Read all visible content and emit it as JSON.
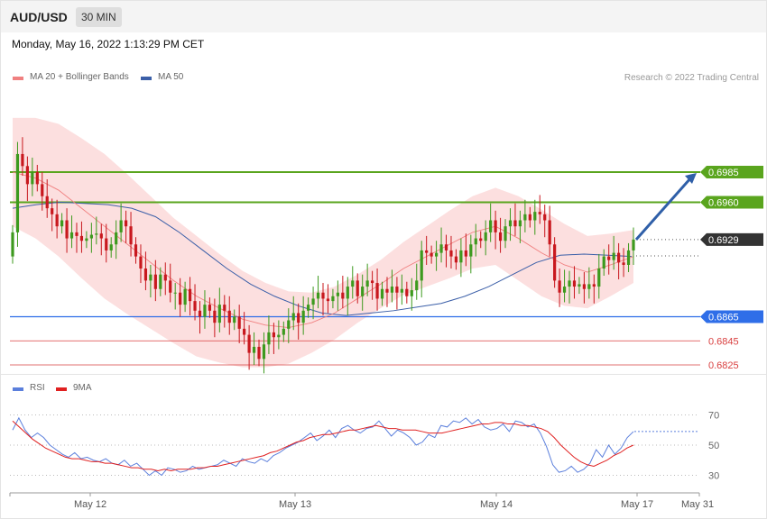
{
  "header": {
    "pair": "AUD/USD",
    "timeframe": "30 MIN"
  },
  "timestamp": "Monday, May 16, 2022 1:13:29 PM CET",
  "legend": {
    "ma20": "MA 20 + Bollinger Bands",
    "ma50": "MA 50"
  },
  "credit": "Research © 2022 Trading Central",
  "rsi_legend": {
    "rsi": "RSI",
    "ma9": "9MA"
  },
  "colors": {
    "band": "#fbd9d9",
    "ma20": "#f08080",
    "ma50": "#3b5fa8",
    "up": "#3d9a1e",
    "down": "#c8181e",
    "resistance": "#5aa51e",
    "support": "#2f6ee8",
    "target": "#d94040",
    "arrow": "#2f5fa8",
    "price": "#333333",
    "rsi": "#5b7fdc",
    "rsi_ma": "#e02020"
  },
  "chart_data": [
    {
      "type": "candlestick",
      "price_range": [
        0.682,
        0.701
      ],
      "x_ticks": [
        "May 12",
        "May 13",
        "May 14",
        "May 17",
        "May 31"
      ],
      "levels": [
        {
          "value": 0.6985,
          "label": "0.6985",
          "kind": "resistance"
        },
        {
          "value": 0.696,
          "label": "0.6960",
          "kind": "resistance"
        },
        {
          "value": 0.6929,
          "label": "0.6929",
          "kind": "last-price"
        },
        {
          "value": 0.6865,
          "label": "0.6865",
          "kind": "support"
        },
        {
          "value": 0.6845,
          "label": "0.6845",
          "kind": "target"
        },
        {
          "value": 0.6825,
          "label": "0.6825",
          "kind": "target"
        }
      ],
      "candles_close": [
        0.6935,
        0.7,
        0.699,
        0.6975,
        0.6985,
        0.6975,
        0.6965,
        0.6955,
        0.695,
        0.694,
        0.6945,
        0.693,
        0.6935,
        0.6932,
        0.6928,
        0.693,
        0.6933,
        0.6934,
        0.693,
        0.692,
        0.6925,
        0.6935,
        0.6945,
        0.694,
        0.6925,
        0.6915,
        0.6905,
        0.6895,
        0.69,
        0.6888,
        0.69,
        0.6895,
        0.6885,
        0.6885,
        0.6875,
        0.6888,
        0.6878,
        0.687,
        0.6865,
        0.6875,
        0.687,
        0.686,
        0.6875,
        0.687,
        0.686,
        0.6865,
        0.6855,
        0.685,
        0.6835,
        0.684,
        0.683,
        0.6842,
        0.6852,
        0.6848,
        0.685,
        0.6855,
        0.6862,
        0.6868,
        0.686,
        0.687,
        0.6875,
        0.688,
        0.6885,
        0.688,
        0.6878,
        0.6882,
        0.6885,
        0.688,
        0.689,
        0.6895,
        0.6882,
        0.689,
        0.6895,
        0.6893,
        0.688,
        0.6888,
        0.6885,
        0.689,
        0.6885,
        0.6888,
        0.6882,
        0.6887,
        0.6895,
        0.692,
        0.6918,
        0.6915,
        0.6918,
        0.6925,
        0.692,
        0.6915,
        0.691,
        0.692,
        0.6915,
        0.6925,
        0.693,
        0.6928,
        0.6935,
        0.6945,
        0.6935,
        0.6928,
        0.694,
        0.6945,
        0.694,
        0.6945,
        0.695,
        0.6945,
        0.6952,
        0.695,
        0.6945,
        0.6925,
        0.6895,
        0.6885,
        0.689,
        0.6895,
        0.689,
        0.6892,
        0.6888,
        0.6892,
        0.689,
        0.6905,
        0.6915,
        0.6912,
        0.6918,
        0.691,
        0.6908,
        0.692,
        0.6929
      ],
      "ma20": [
        0.6985,
        0.698,
        0.697,
        0.6955,
        0.694,
        0.6925,
        0.691,
        0.6895,
        0.6882,
        0.6872,
        0.6863,
        0.6858,
        0.6856,
        0.686,
        0.6868,
        0.688,
        0.6892,
        0.6905,
        0.6915,
        0.6925,
        0.6935,
        0.694,
        0.693,
        0.6918,
        0.6908,
        0.6902,
        0.6908,
        0.6915
      ],
      "ma50": [
        0.6955,
        0.6958,
        0.696,
        0.6959,
        0.6958,
        0.6955,
        0.6948,
        0.6935,
        0.692,
        0.6905,
        0.6892,
        0.6882,
        0.6874,
        0.6868,
        0.6866,
        0.6868,
        0.687,
        0.6873,
        0.6876,
        0.6882,
        0.689,
        0.69,
        0.691,
        0.6916,
        0.6917,
        0.6916,
        0.6915
      ],
      "projection": {
        "from": 0.6929,
        "to": 0.6985
      }
    },
    {
      "type": "line",
      "title": "RSI",
      "y_ticks": [
        70,
        50,
        30
      ],
      "series": [
        {
          "name": "RSI",
          "values": [
            60,
            68,
            60,
            55,
            58,
            55,
            50,
            47,
            44,
            42,
            45,
            41,
            42,
            40,
            39,
            41,
            38,
            37,
            40,
            36,
            38,
            34,
            30,
            33,
            30,
            35,
            34,
            32,
            33,
            36,
            34,
            35,
            36,
            37,
            40,
            38,
            36,
            41,
            39,
            38,
            41,
            39,
            43,
            45,
            48,
            50,
            52,
            55,
            58,
            53,
            56,
            60,
            55,
            61,
            63,
            60,
            58,
            61,
            62,
            66,
            61,
            56,
            60,
            58,
            55,
            50,
            52,
            57,
            55,
            63,
            62,
            66,
            65,
            68,
            64,
            67,
            62,
            60,
            61,
            64,
            59,
            66,
            65,
            62,
            64,
            58,
            49,
            37,
            32,
            33,
            36,
            32,
            34,
            38,
            47,
            42,
            50,
            44,
            48,
            55,
            59
          ]
        },
        {
          "name": "9MA",
          "values": [
            66,
            62,
            58,
            54,
            51,
            48,
            46,
            44,
            42,
            41,
            41,
            40,
            39,
            39,
            38,
            38,
            37,
            36,
            35,
            35,
            34,
            34,
            33,
            34,
            33,
            34,
            34,
            34,
            35,
            35,
            36,
            36,
            37,
            38,
            39,
            40,
            41,
            42,
            43,
            45,
            46,
            48,
            50,
            52,
            53,
            55,
            56,
            57,
            57,
            58,
            59,
            60,
            60,
            61,
            62,
            63,
            62,
            61,
            61,
            60,
            60,
            60,
            59,
            58,
            58,
            58,
            59,
            60,
            61,
            62,
            63,
            64,
            64,
            65,
            65,
            64,
            64,
            63,
            63,
            62,
            61,
            59,
            55,
            50,
            46,
            42,
            39,
            37,
            36,
            38,
            40,
            43,
            45,
            48,
            50
          ]
        }
      ]
    }
  ]
}
